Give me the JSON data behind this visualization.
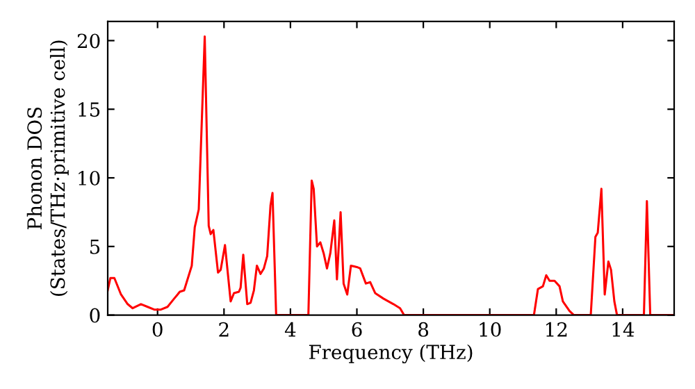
{
  "chart_data": {
    "type": "line",
    "xlabel": "Frequency (THz)",
    "ylabel": "Phonon DOS\n(States/THz·primitive cell)",
    "xlim": [
      -1.5,
      15.55
    ],
    "ylim": [
      0,
      21.4
    ],
    "xticks": [
      0,
      2,
      4,
      6,
      8,
      10,
      12,
      14
    ],
    "yticks": [
      0,
      5,
      10,
      15,
      20
    ],
    "grid": false,
    "legend": false,
    "marker": "none",
    "line_style": "solid",
    "series": [
      {
        "color": "#ff0000",
        "x": [
          -1.5,
          -1.42,
          -1.3,
          -1.1,
          -0.9,
          -0.75,
          -0.5,
          -0.3,
          -0.1,
          0.1,
          0.3,
          0.5,
          0.67,
          0.8,
          1.03,
          1.12,
          1.24,
          1.42,
          1.54,
          1.6,
          1.68,
          1.82,
          1.9,
          2.03,
          2.2,
          2.3,
          2.45,
          2.5,
          2.58,
          2.7,
          2.8,
          2.9,
          2.99,
          3.1,
          3.2,
          3.3,
          3.4,
          3.46,
          3.57,
          4.54,
          4.64,
          4.7,
          4.8,
          4.9,
          5.0,
          5.1,
          5.2,
          5.32,
          5.4,
          5.51,
          5.6,
          5.71,
          5.82,
          6.0,
          6.1,
          6.27,
          6.4,
          6.55,
          6.8,
          7.1,
          7.3,
          7.42,
          11.33,
          11.45,
          11.6,
          11.7,
          11.8,
          11.95,
          12.1,
          12.2,
          12.4,
          12.53,
          13.04,
          13.18,
          13.25,
          13.36,
          13.46,
          13.57,
          13.65,
          13.75,
          13.83,
          14.64,
          14.73,
          14.83,
          15.55
        ],
        "values": [
          1.8,
          2.7,
          2.7,
          1.5,
          0.8,
          0.5,
          0.8,
          0.6,
          0.4,
          0.4,
          0.6,
          1.2,
          1.7,
          1.8,
          3.6,
          6.4,
          7.7,
          20.3,
          6.5,
          5.9,
          6.2,
          3.1,
          3.3,
          5.1,
          1.0,
          1.6,
          1.7,
          2.0,
          4.4,
          0.8,
          0.9,
          1.8,
          3.6,
          3.0,
          3.4,
          4.3,
          8.0,
          8.9,
          0,
          0,
          9.8,
          9.2,
          5.0,
          5.3,
          4.5,
          3.4,
          4.5,
          6.9,
          2.6,
          7.5,
          2.3,
          1.5,
          3.6,
          3.5,
          3.4,
          2.3,
          2.4,
          1.6,
          1.2,
          0.8,
          0.5,
          0,
          0,
          1.9,
          2.1,
          2.9,
          2.5,
          2.5,
          2.1,
          1.0,
          0.3,
          0,
          0,
          5.7,
          6.0,
          9.2,
          1.5,
          3.9,
          3.3,
          1.0,
          0,
          0,
          8.3,
          0,
          0
        ]
      }
    ]
  }
}
